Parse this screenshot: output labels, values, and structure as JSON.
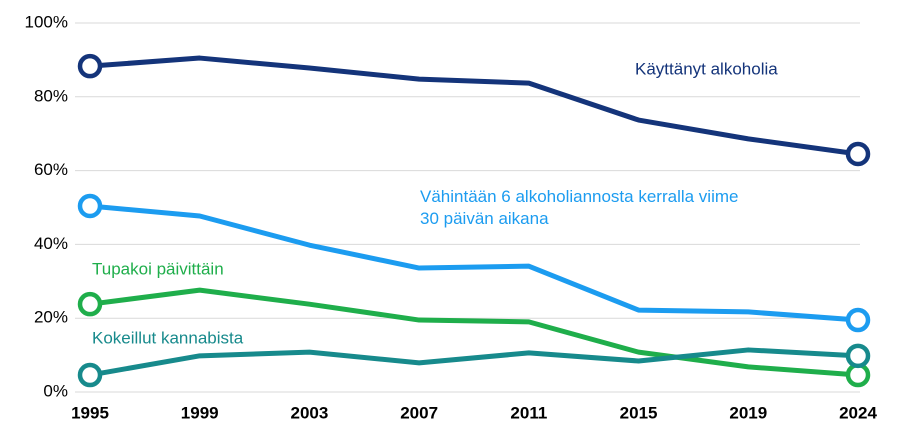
{
  "chart_data": {
    "type": "line",
    "categories": [
      "1995",
      "1999",
      "2003",
      "2007",
      "2011",
      "2015",
      "2019",
      "2024"
    ],
    "series": [
      {
        "name": "Käyttänyt alkoholia",
        "color": "#14347a",
        "values": [
          88.3,
          90.5,
          87.8,
          84.8,
          83.7,
          73.7,
          68.6,
          64.5
        ]
      },
      {
        "name": "Vähintään 6 alkoholiannosta kerralla viime 30 päivän aikana",
        "color": "#1c9cf0",
        "values": [
          50.4,
          47.7,
          39.8,
          33.6,
          34.1,
          22.2,
          21.7,
          19.5
        ]
      },
      {
        "name": "Tupakoi päivittäin",
        "color": "#1fae4b",
        "values": [
          23.8,
          27.6,
          23.8,
          19.5,
          19.0,
          10.8,
          6.8,
          4.6
        ]
      },
      {
        "name": "Kokeillut kannabista",
        "color": "#178a8c",
        "values": [
          4.6,
          9.8,
          10.8,
          7.9,
          10.6,
          8.4,
          11.4,
          9.8
        ]
      }
    ],
    "ylim": [
      0,
      100
    ],
    "yticks": [
      {
        "value": 0,
        "label": "0%"
      },
      {
        "value": 20,
        "label": "20%"
      },
      {
        "value": 40,
        "label": "40%"
      },
      {
        "value": 60,
        "label": "60%"
      },
      {
        "value": 80,
        "label": "80%"
      },
      {
        "value": 100,
        "label": "100%"
      }
    ],
    "grid": true
  }
}
